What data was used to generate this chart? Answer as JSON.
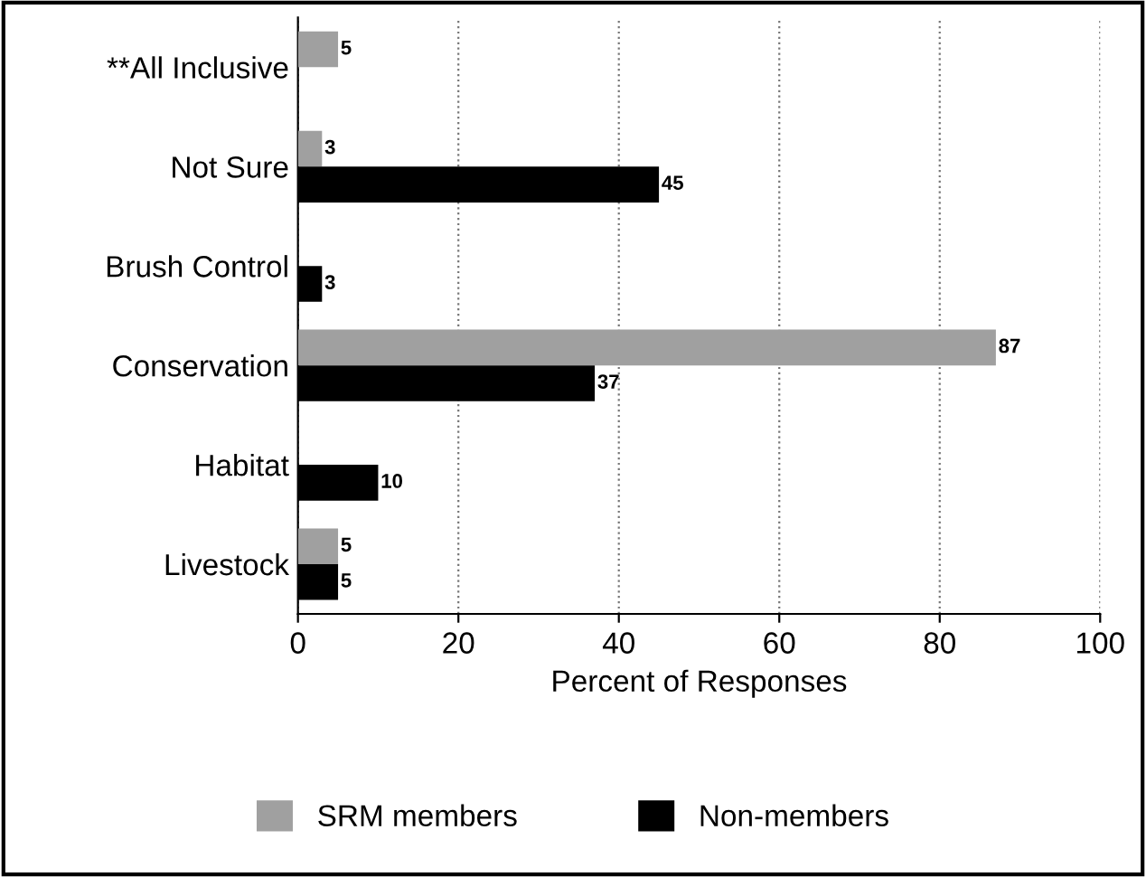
{
  "chart_data": {
    "type": "bar",
    "orientation": "horizontal",
    "xlabel": "Percent of Responses",
    "categories": [
      "**All Inclusive",
      "Not Sure",
      "Brush Control",
      "Conservation",
      "Habitat",
      "Livestock"
    ],
    "series": [
      {
        "name": "SRM members",
        "color": "#a0a0a0",
        "values": [
          5,
          3,
          null,
          87,
          null,
          5
        ]
      },
      {
        "name": "Non-members",
        "color": "#000000",
        "values": [
          null,
          45,
          3,
          37,
          10,
          5
        ]
      }
    ],
    "xlim": [
      0,
      100
    ],
    "xticks": [
      0,
      20,
      40,
      60,
      80,
      100
    ],
    "grid": "x",
    "legend": "bottom",
    "data_labels": true
  }
}
